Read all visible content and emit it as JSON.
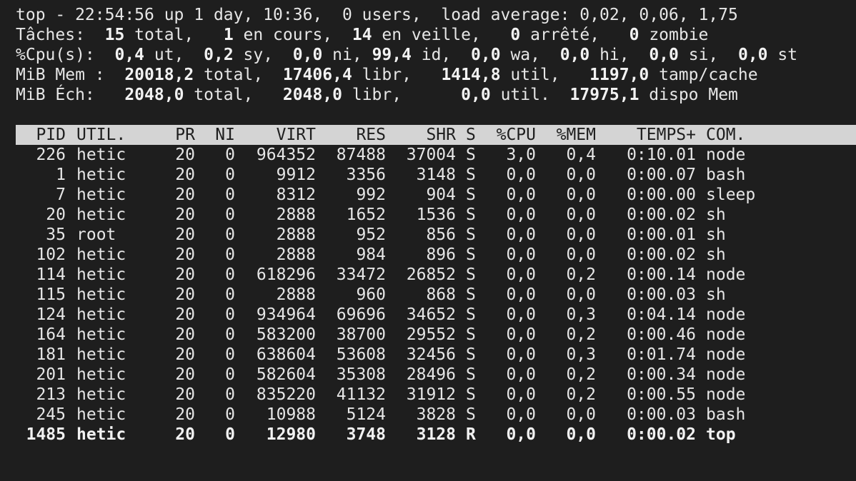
{
  "summary": {
    "line1": [
      {
        "t": "top - 22:54:56 up 1 day, 10:36,  0 users,  load average: 0,02, 0,06, 1,75",
        "b": false
      }
    ],
    "line2": [
      {
        "t": "Tâches:  ",
        "b": false
      },
      {
        "t": "15",
        "b": true
      },
      {
        "t": " total,   ",
        "b": false
      },
      {
        "t": "1",
        "b": true
      },
      {
        "t": " en cours,  ",
        "b": false
      },
      {
        "t": "14",
        "b": true
      },
      {
        "t": " en veille,   ",
        "b": false
      },
      {
        "t": "0",
        "b": true
      },
      {
        "t": " arrêté,   ",
        "b": false
      },
      {
        "t": "0",
        "b": true
      },
      {
        "t": " zombie",
        "b": false
      }
    ],
    "line3": [
      {
        "t": "%Cpu(s):  ",
        "b": false
      },
      {
        "t": "0,4",
        "b": true
      },
      {
        "t": " ut,  ",
        "b": false
      },
      {
        "t": "0,2",
        "b": true
      },
      {
        "t": " sy,  ",
        "b": false
      },
      {
        "t": "0,0",
        "b": true
      },
      {
        "t": " ni, ",
        "b": false
      },
      {
        "t": "99,4",
        "b": true
      },
      {
        "t": " id,  ",
        "b": false
      },
      {
        "t": "0,0",
        "b": true
      },
      {
        "t": " wa,  ",
        "b": false
      },
      {
        "t": "0,0",
        "b": true
      },
      {
        "t": " hi,  ",
        "b": false
      },
      {
        "t": "0,0",
        "b": true
      },
      {
        "t": " si,  ",
        "b": false
      },
      {
        "t": "0,0",
        "b": true
      },
      {
        "t": " st",
        "b": false
      }
    ],
    "line4": [
      {
        "t": "MiB Mem :  ",
        "b": false
      },
      {
        "t": "20018,2",
        "b": true
      },
      {
        "t": " total,  ",
        "b": false
      },
      {
        "t": "17406,4",
        "b": true
      },
      {
        "t": " libr,   ",
        "b": false
      },
      {
        "t": "1414,8",
        "b": true
      },
      {
        "t": " util,   ",
        "b": false
      },
      {
        "t": "1197,0",
        "b": true
      },
      {
        "t": " tamp/cache",
        "b": false
      }
    ],
    "line5": [
      {
        "t": "MiB Éch:   ",
        "b": false
      },
      {
        "t": "2048,0",
        "b": true
      },
      {
        "t": " total,   ",
        "b": false
      },
      {
        "t": "2048,0",
        "b": true
      },
      {
        "t": " libr,      ",
        "b": false
      },
      {
        "t": "0,0",
        "b": true
      },
      {
        "t": " util.  ",
        "b": false
      },
      {
        "t": "17975,1",
        "b": true
      },
      {
        "t": " dispo Mem",
        "b": false
      }
    ]
  },
  "table": {
    "columns": [
      "PID",
      "UTIL.",
      "PR",
      "NI",
      "VIRT",
      "RES",
      "SHR",
      "S",
      "%CPU",
      "%MEM",
      "TEMPS+",
      "COM."
    ],
    "rows": [
      [
        "226",
        "hetic",
        "20",
        "0",
        "964352",
        "87488",
        "37004",
        "S",
        "3,0",
        "0,4",
        "0:10.01",
        "node"
      ],
      [
        "1",
        "hetic",
        "20",
        "0",
        "9912",
        "3356",
        "3148",
        "S",
        "0,0",
        "0,0",
        "0:00.07",
        "bash"
      ],
      [
        "7",
        "hetic",
        "20",
        "0",
        "8312",
        "992",
        "904",
        "S",
        "0,0",
        "0,0",
        "0:00.00",
        "sleep"
      ],
      [
        "20",
        "hetic",
        "20",
        "0",
        "2888",
        "1652",
        "1536",
        "S",
        "0,0",
        "0,0",
        "0:00.02",
        "sh"
      ],
      [
        "35",
        "root",
        "20",
        "0",
        "2888",
        "952",
        "856",
        "S",
        "0,0",
        "0,0",
        "0:00.01",
        "sh"
      ],
      [
        "102",
        "hetic",
        "20",
        "0",
        "2888",
        "984",
        "896",
        "S",
        "0,0",
        "0,0",
        "0:00.02",
        "sh"
      ],
      [
        "114",
        "hetic",
        "20",
        "0",
        "618296",
        "33472",
        "26852",
        "S",
        "0,0",
        "0,2",
        "0:00.14",
        "node"
      ],
      [
        "115",
        "hetic",
        "20",
        "0",
        "2888",
        "960",
        "868",
        "S",
        "0,0",
        "0,0",
        "0:00.03",
        "sh"
      ],
      [
        "124",
        "hetic",
        "20",
        "0",
        "934964",
        "69696",
        "34652",
        "S",
        "0,0",
        "0,3",
        "0:04.14",
        "node"
      ],
      [
        "164",
        "hetic",
        "20",
        "0",
        "583200",
        "38700",
        "29552",
        "S",
        "0,0",
        "0,2",
        "0:00.46",
        "node"
      ],
      [
        "181",
        "hetic",
        "20",
        "0",
        "638604",
        "53608",
        "32456",
        "S",
        "0,0",
        "0,3",
        "0:01.74",
        "node"
      ],
      [
        "201",
        "hetic",
        "20",
        "0",
        "582604",
        "35308",
        "28496",
        "S",
        "0,0",
        "0,2",
        "0:00.34",
        "node"
      ],
      [
        "213",
        "hetic",
        "20",
        "0",
        "835220",
        "41132",
        "31912",
        "S",
        "0,0",
        "0,2",
        "0:00.55",
        "node"
      ],
      [
        "245",
        "hetic",
        "20",
        "0",
        "10988",
        "5124",
        "3828",
        "S",
        "0,0",
        "0,0",
        "0:00.03",
        "bash"
      ],
      [
        "1485",
        "hetic",
        "20",
        "0",
        "12980",
        "3748",
        "3128",
        "R",
        "0,0",
        "0,0",
        "0:00.02",
        "top"
      ]
    ],
    "highlight_row": 14
  },
  "colors": {
    "background": "#1e1e1e",
    "text": "#e6e6e6",
    "header_bar": "#d4d4d4",
    "header_text": "#1e1e1e"
  }
}
